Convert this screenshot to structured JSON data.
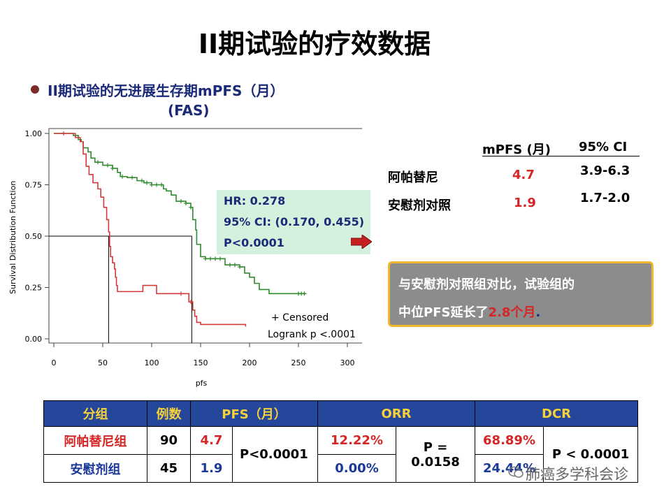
{
  "slide": {
    "title": "II期试验的疗效数据",
    "subtitle_line1": "II期试验的无进展生存期mPFS（月）",
    "subtitle_line2": "(FAS)"
  },
  "hr_box": {
    "hr": "HR: 0.278",
    "ci": "95% CI: (0.170, 0.455)",
    "p": "P<0.0001"
  },
  "median_table": {
    "header_mpfs": "mPFS (月)",
    "header_ci": "95% CI",
    "rows": [
      {
        "group": "阿帕替尼",
        "mpfs": "4.7",
        "ci": "3.9-6.3"
      },
      {
        "group": "安慰剂对照",
        "mpfs": "1.9",
        "ci": "1.7-2.0"
      }
    ]
  },
  "callout": {
    "line1": "与安慰剂对照组对比，试验组的",
    "line2_prefix": "中位PFS延长了",
    "line2_highlight": "2.8个月",
    "line2_suffix": "."
  },
  "summary_table": {
    "headers": [
      "分组",
      "例数",
      "PFS（月）",
      "ORR",
      "DCR"
    ],
    "rows": [
      {
        "group": "阿帕替尼组",
        "n": "90",
        "pfs": "4.7",
        "orr": "12.22%",
        "dcr": "68.89%"
      },
      {
        "group": "安慰剂组",
        "n": "45",
        "pfs": "1.9",
        "orr": "0.00%",
        "dcr": "24.44%"
      }
    ],
    "pfs_p": "P<0.0001",
    "orr_p": "P = 0.0158",
    "dcr_p": "P < 0.0001"
  },
  "watermark": "肺癌多学科会诊",
  "colors": {
    "apatinib_curve": "#2e8b2e",
    "placebo_curve": "#d43a3a",
    "header_bg": "#24469b",
    "header_text": "#f7d13a",
    "highlight_red": "#d42626",
    "text_blue": "#1a3a9a"
  },
  "chart_data": {
    "type": "line",
    "title": "",
    "xlabel": "pfs",
    "ylabel": "Survival Distribution Function",
    "xlim": [
      0,
      300
    ],
    "ylim": [
      0,
      1
    ],
    "x_ticks": [
      0,
      50,
      100,
      150,
      200,
      250,
      300
    ],
    "y_ticks": [
      0.0,
      0.25,
      0.5,
      0.75,
      1.0
    ],
    "y_tick_labels": [
      "0.00",
      "0.25",
      "0.50",
      "0.75",
      "1.00"
    ],
    "legend_text": "+ Censored",
    "annotation": "Logrank p <.0001",
    "median_lines": [
      {
        "x": 56,
        "y": 0.5
      },
      {
        "x": 141,
        "y": 0.5
      }
    ],
    "series": [
      {
        "color": "#2e8b2e",
        "points": [
          [
            0,
            1.0
          ],
          [
            15,
            1.0
          ],
          [
            20,
            0.99
          ],
          [
            25,
            0.97
          ],
          [
            28,
            0.96
          ],
          [
            30,
            0.93
          ],
          [
            35,
            0.91
          ],
          [
            38,
            0.88
          ],
          [
            42,
            0.86
          ],
          [
            50,
            0.845
          ],
          [
            60,
            0.83
          ],
          [
            65,
            0.81
          ],
          [
            68,
            0.79
          ],
          [
            75,
            0.785
          ],
          [
            85,
            0.77
          ],
          [
            92,
            0.76
          ],
          [
            100,
            0.75
          ],
          [
            110,
            0.75
          ],
          [
            112,
            0.73
          ],
          [
            115,
            0.72
          ],
          [
            120,
            0.7
          ],
          [
            125,
            0.67
          ],
          [
            135,
            0.66
          ],
          [
            140,
            0.64
          ],
          [
            142,
            0.58
          ],
          [
            145,
            0.53
          ],
          [
            146,
            0.46
          ],
          [
            150,
            0.4
          ],
          [
            155,
            0.39
          ],
          [
            170,
            0.39
          ],
          [
            175,
            0.36
          ],
          [
            190,
            0.35
          ],
          [
            195,
            0.32
          ],
          [
            200,
            0.3
          ],
          [
            205,
            0.27
          ],
          [
            210,
            0.24
          ],
          [
            220,
            0.22
          ],
          [
            230,
            0.22
          ],
          [
            240,
            0.22
          ],
          [
            258,
            0.22
          ]
        ],
        "censored_x": [
          45,
          55,
          60,
          70,
          80,
          90,
          95,
          100,
          105,
          110,
          130,
          135,
          140,
          155,
          160,
          165,
          170,
          180,
          185,
          190,
          250,
          253,
          256
        ]
      },
      {
        "color": "#d43a3a",
        "points": [
          [
            0,
            1.0
          ],
          [
            15,
            1.0
          ],
          [
            22,
            0.98
          ],
          [
            27,
            0.96
          ],
          [
            30,
            0.9
          ],
          [
            33,
            0.84
          ],
          [
            36,
            0.8
          ],
          [
            40,
            0.76
          ],
          [
            45,
            0.73
          ],
          [
            48,
            0.69
          ],
          [
            51,
            0.64
          ],
          [
            54,
            0.58
          ],
          [
            56,
            0.52
          ],
          [
            57,
            0.45
          ],
          [
            58,
            0.4
          ],
          [
            60,
            0.37
          ],
          [
            62,
            0.34
          ],
          [
            63,
            0.3
          ],
          [
            64,
            0.26
          ],
          [
            65,
            0.23
          ],
          [
            80,
            0.23
          ],
          [
            90,
            0.23
          ],
          [
            91,
            0.26
          ],
          [
            100,
            0.26
          ],
          [
            105,
            0.22
          ],
          [
            120,
            0.22
          ],
          [
            130,
            0.22
          ],
          [
            138,
            0.18
          ],
          [
            142,
            0.14
          ],
          [
            144,
            0.11
          ],
          [
            146,
            0.08
          ],
          [
            150,
            0.07
          ],
          [
            196,
            0.06
          ]
        ],
        "censored_x": [
          10,
          130,
          140
        ]
      }
    ]
  }
}
